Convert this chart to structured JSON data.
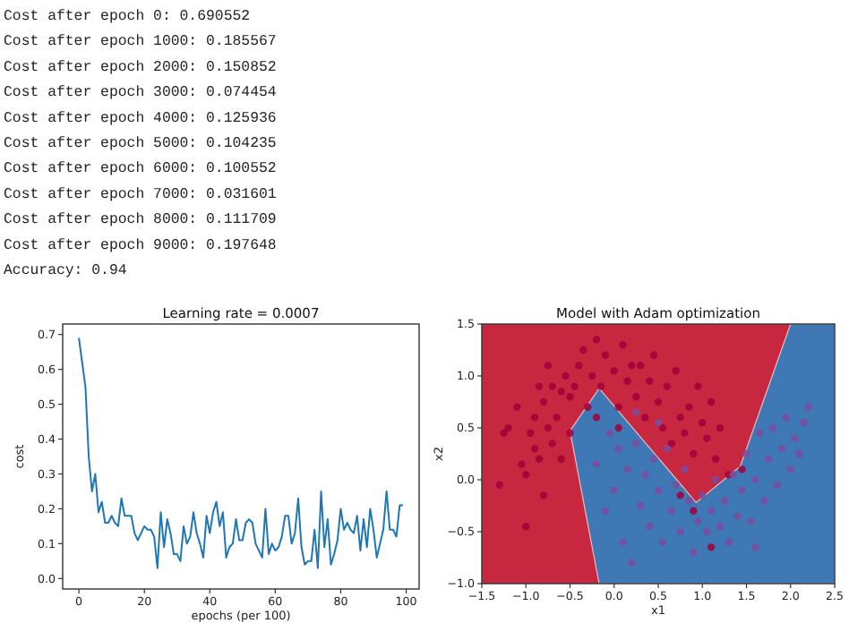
{
  "chart_data": [
    {
      "type": "other",
      "annotations": [
        "Cost after epoch 0: 0.690552",
        "Cost after epoch 1000: 0.185567",
        "Cost after epoch 2000: 0.150852",
        "Cost after epoch 3000: 0.074454",
        "Cost after epoch 4000: 0.125936",
        "Cost after epoch 5000: 0.104235",
        "Cost after epoch 6000: 0.100552",
        "Cost after epoch 7000: 0.031601",
        "Cost after epoch 8000: 0.111709",
        "Cost after epoch 9000: 0.197648",
        "Accuracy: 0.94"
      ]
    },
    {
      "type": "line",
      "title": "Learning rate = 0.0007",
      "xlabel": "epochs (per 100)",
      "ylabel": "cost",
      "xlim": [
        -4.95,
        103.95
      ],
      "ylim": [
        -0.03,
        0.73
      ],
      "xticks": [
        0,
        20,
        40,
        60,
        80,
        100
      ],
      "yticks": [
        {
          "value": 0,
          "label": "0.0"
        },
        {
          "value": 0.1,
          "label": "0.1"
        },
        {
          "value": 0.2,
          "label": "0.2"
        },
        {
          "value": 0.3,
          "label": "0.3"
        },
        {
          "value": 0.4,
          "label": "0.4"
        },
        {
          "value": 0.5,
          "label": "0.5"
        },
        {
          "value": 0.6,
          "label": "0.6"
        },
        {
          "value": 0.7,
          "label": "0.7"
        }
      ],
      "x": [
        0,
        1,
        2,
        3,
        4,
        5,
        6,
        7,
        8,
        9,
        10,
        11,
        12,
        13,
        14,
        15,
        16,
        17,
        18,
        19,
        20,
        21,
        22,
        23,
        24,
        25,
        26,
        27,
        28,
        29,
        30,
        31,
        32,
        33,
        34,
        35,
        36,
        37,
        38,
        39,
        40,
        41,
        42,
        43,
        44,
        45,
        46,
        47,
        48,
        49,
        50,
        51,
        52,
        53,
        54,
        55,
        56,
        57,
        58,
        59,
        60,
        61,
        62,
        63,
        64,
        65,
        66,
        67,
        68,
        69,
        70,
        71,
        72,
        73,
        74,
        75,
        76,
        77,
        78,
        79,
        80,
        81,
        82,
        83,
        84,
        85,
        86,
        87,
        88,
        89,
        90,
        91,
        92,
        93,
        94,
        95,
        96,
        97,
        98,
        99
      ],
      "series": [
        {
          "color": "#1f77b4",
          "values": [
            0.69,
            0.62,
            0.55,
            0.35,
            0.25,
            0.3,
            0.19,
            0.22,
            0.16,
            0.16,
            0.18,
            0.16,
            0.15,
            0.23,
            0.18,
            0.18,
            0.18,
            0.13,
            0.11,
            0.13,
            0.15,
            0.14,
            0.14,
            0.12,
            0.03,
            0.19,
            0.09,
            0.17,
            0.13,
            0.07,
            0.07,
            0.05,
            0.15,
            0.1,
            0.12,
            0.19,
            0.13,
            0.1,
            0.06,
            0.18,
            0.13,
            0.19,
            0.22,
            0.15,
            0.19,
            0.06,
            0.09,
            0.1,
            0.17,
            0.11,
            0.11,
            0.16,
            0.17,
            0.16,
            0.1,
            0.08,
            0.06,
            0.2,
            0.07,
            0.1,
            0.08,
            0.09,
            0.12,
            0.18,
            0.18,
            0.1,
            0.13,
            0.23,
            0.09,
            0.04,
            0.05,
            0.05,
            0.14,
            0.03,
            0.25,
            0.09,
            0.17,
            0.04,
            0.07,
            0.11,
            0.2,
            0.14,
            0.16,
            0.14,
            0.13,
            0.18,
            0.08,
            0.17,
            0.09,
            0.2,
            0.14,
            0.06,
            0.1,
            0.14,
            0.25,
            0.14,
            0.14,
            0.12,
            0.21,
            0.21
          ]
        }
      ]
    },
    {
      "type": "scatter",
      "title": "Model with Adam optimization",
      "xlabel": "x1",
      "ylabel": "x2",
      "xlim": [
        -1.5,
        2.5
      ],
      "ylim": [
        -1,
        1.5
      ],
      "xticks": [
        {
          "value": -1.5,
          "label": "−1.5"
        },
        {
          "value": -1,
          "label": "−1.0"
        },
        {
          "value": -0.5,
          "label": "−0.5"
        },
        {
          "value": 0,
          "label": "0.0"
        },
        {
          "value": 0.5,
          "label": "0.5"
        },
        {
          "value": 1,
          "label": "1.0"
        },
        {
          "value": 1.5,
          "label": "1.5"
        },
        {
          "value": 2,
          "label": "2.0"
        },
        {
          "value": 2.5,
          "label": "2.5"
        }
      ],
      "yticks": [
        {
          "value": -1,
          "label": "−1.0"
        },
        {
          "value": -0.5,
          "label": "−0.5"
        },
        {
          "value": 0,
          "label": "0.0"
        },
        {
          "value": 0.5,
          "label": "0.5"
        },
        {
          "value": 1,
          "label": "1.0"
        },
        {
          "value": 1.5,
          "label": "1.5"
        }
      ],
      "bands": [
        {
          "axis": "x",
          "from": -1.5,
          "to": 2.5,
          "color": "#c8283f"
        }
      ],
      "series": [
        {
          "type": "area",
          "color": "#3e78b5",
          "x": [
            -0.17,
            -0.5,
            -0.17,
            0.93,
            1.43,
            2.0,
            2.5,
            2.5
          ],
          "values": [
            -1,
            0.47,
            0.88,
            -0.22,
            0.13,
            1.5,
            1.5,
            -1
          ]
        },
        {
          "color": "#a0003a",
          "x": [
            -1.3,
            -1.25,
            -1.2,
            -1.1,
            -1.05,
            -1,
            -1,
            -0.95,
            -0.9,
            -0.9,
            -0.85,
            -0.85,
            -0.8,
            -0.8,
            -0.75,
            -0.75,
            -0.7,
            -0.7,
            -0.65,
            -0.6,
            -0.6,
            -0.55,
            -0.5,
            -0.5,
            -0.45,
            -0.4,
            -0.35,
            -0.3,
            -0.25,
            -0.2,
            -0.15,
            -0.1,
            0,
            0.05,
            0.1,
            0.15,
            0.2,
            0.25,
            0.3,
            0.35,
            0.4,
            0.45,
            0.5,
            0.55,
            0.6,
            0.65,
            0.7,
            0.75,
            0.8,
            0.85,
            0.9,
            0.95,
            1,
            1.05,
            1.1,
            1.15,
            1.2,
            1.3,
            0.75,
            0.9,
            1.1,
            1.45,
            0.05,
            -0.2
          ],
          "values": [
            -0.05,
            0.45,
            0.5,
            0.7,
            0.15,
            0.05,
            -0.45,
            0.45,
            0.6,
            0.3,
            0.9,
            0.2,
            0.75,
            -0.15,
            1.1,
            0.5,
            0.35,
            0.9,
            0.6,
            0.85,
            0.2,
            1,
            0.8,
            0.45,
            0.9,
            1.1,
            1.25,
            0.7,
            1,
            1.35,
            0.9,
            1.2,
            1.05,
            0.7,
            1.3,
            0.95,
            1.1,
            0.8,
            1.1,
            0.6,
            0.95,
            1.2,
            0.75,
            0.5,
            0.9,
            0.35,
            1.05,
            0.6,
            0.45,
            0.7,
            0.25,
            0.9,
            0.55,
            0.4,
            0.75,
            0.2,
            0.5,
            0.05,
            -0.15,
            -0.3,
            -0.65,
            0.1,
            0.5,
            0.6
          ]
        },
        {
          "color": "#7b4b9f",
          "x": [
            -0.2,
            -0.1,
            -0.05,
            0,
            0.05,
            0.1,
            0.15,
            0.2,
            0.25,
            0.3,
            0.35,
            0.4,
            0.45,
            0.5,
            0.55,
            0.6,
            0.65,
            0.7,
            0.75,
            0.8,
            0.85,
            0.9,
            0.95,
            1,
            1.05,
            1.1,
            1.15,
            1.2,
            1.25,
            1.3,
            1.35,
            1.4,
            1.45,
            1.5,
            1.55,
            1.6,
            1.65,
            1.7,
            1.75,
            1.8,
            1.85,
            1.9,
            1.95,
            2,
            2.05,
            2.1,
            2.15,
            2.2,
            1.6,
            0.5,
            0.25
          ],
          "values": [
            0.15,
            -0.3,
            0.45,
            -0.1,
            0.3,
            -0.6,
            0.1,
            -0.8,
            0.35,
            -0.25,
            0.05,
            -0.45,
            0.2,
            -0.1,
            -0.6,
            0.3,
            -0.3,
            -0.05,
            -0.5,
            0.1,
            -0.2,
            -0.7,
            -0.4,
            -0.15,
            -0.5,
            -0.3,
            0,
            -0.45,
            -0.2,
            -0.6,
            0.05,
            -0.35,
            -0.1,
            0.25,
            -0.4,
            0,
            0.45,
            -0.2,
            0.2,
            0.5,
            -0.05,
            0.3,
            0.6,
            0.1,
            0.4,
            0.25,
            0.55,
            0.7,
            -0.65,
            0.55,
            0.65
          ]
        }
      ]
    }
  ]
}
